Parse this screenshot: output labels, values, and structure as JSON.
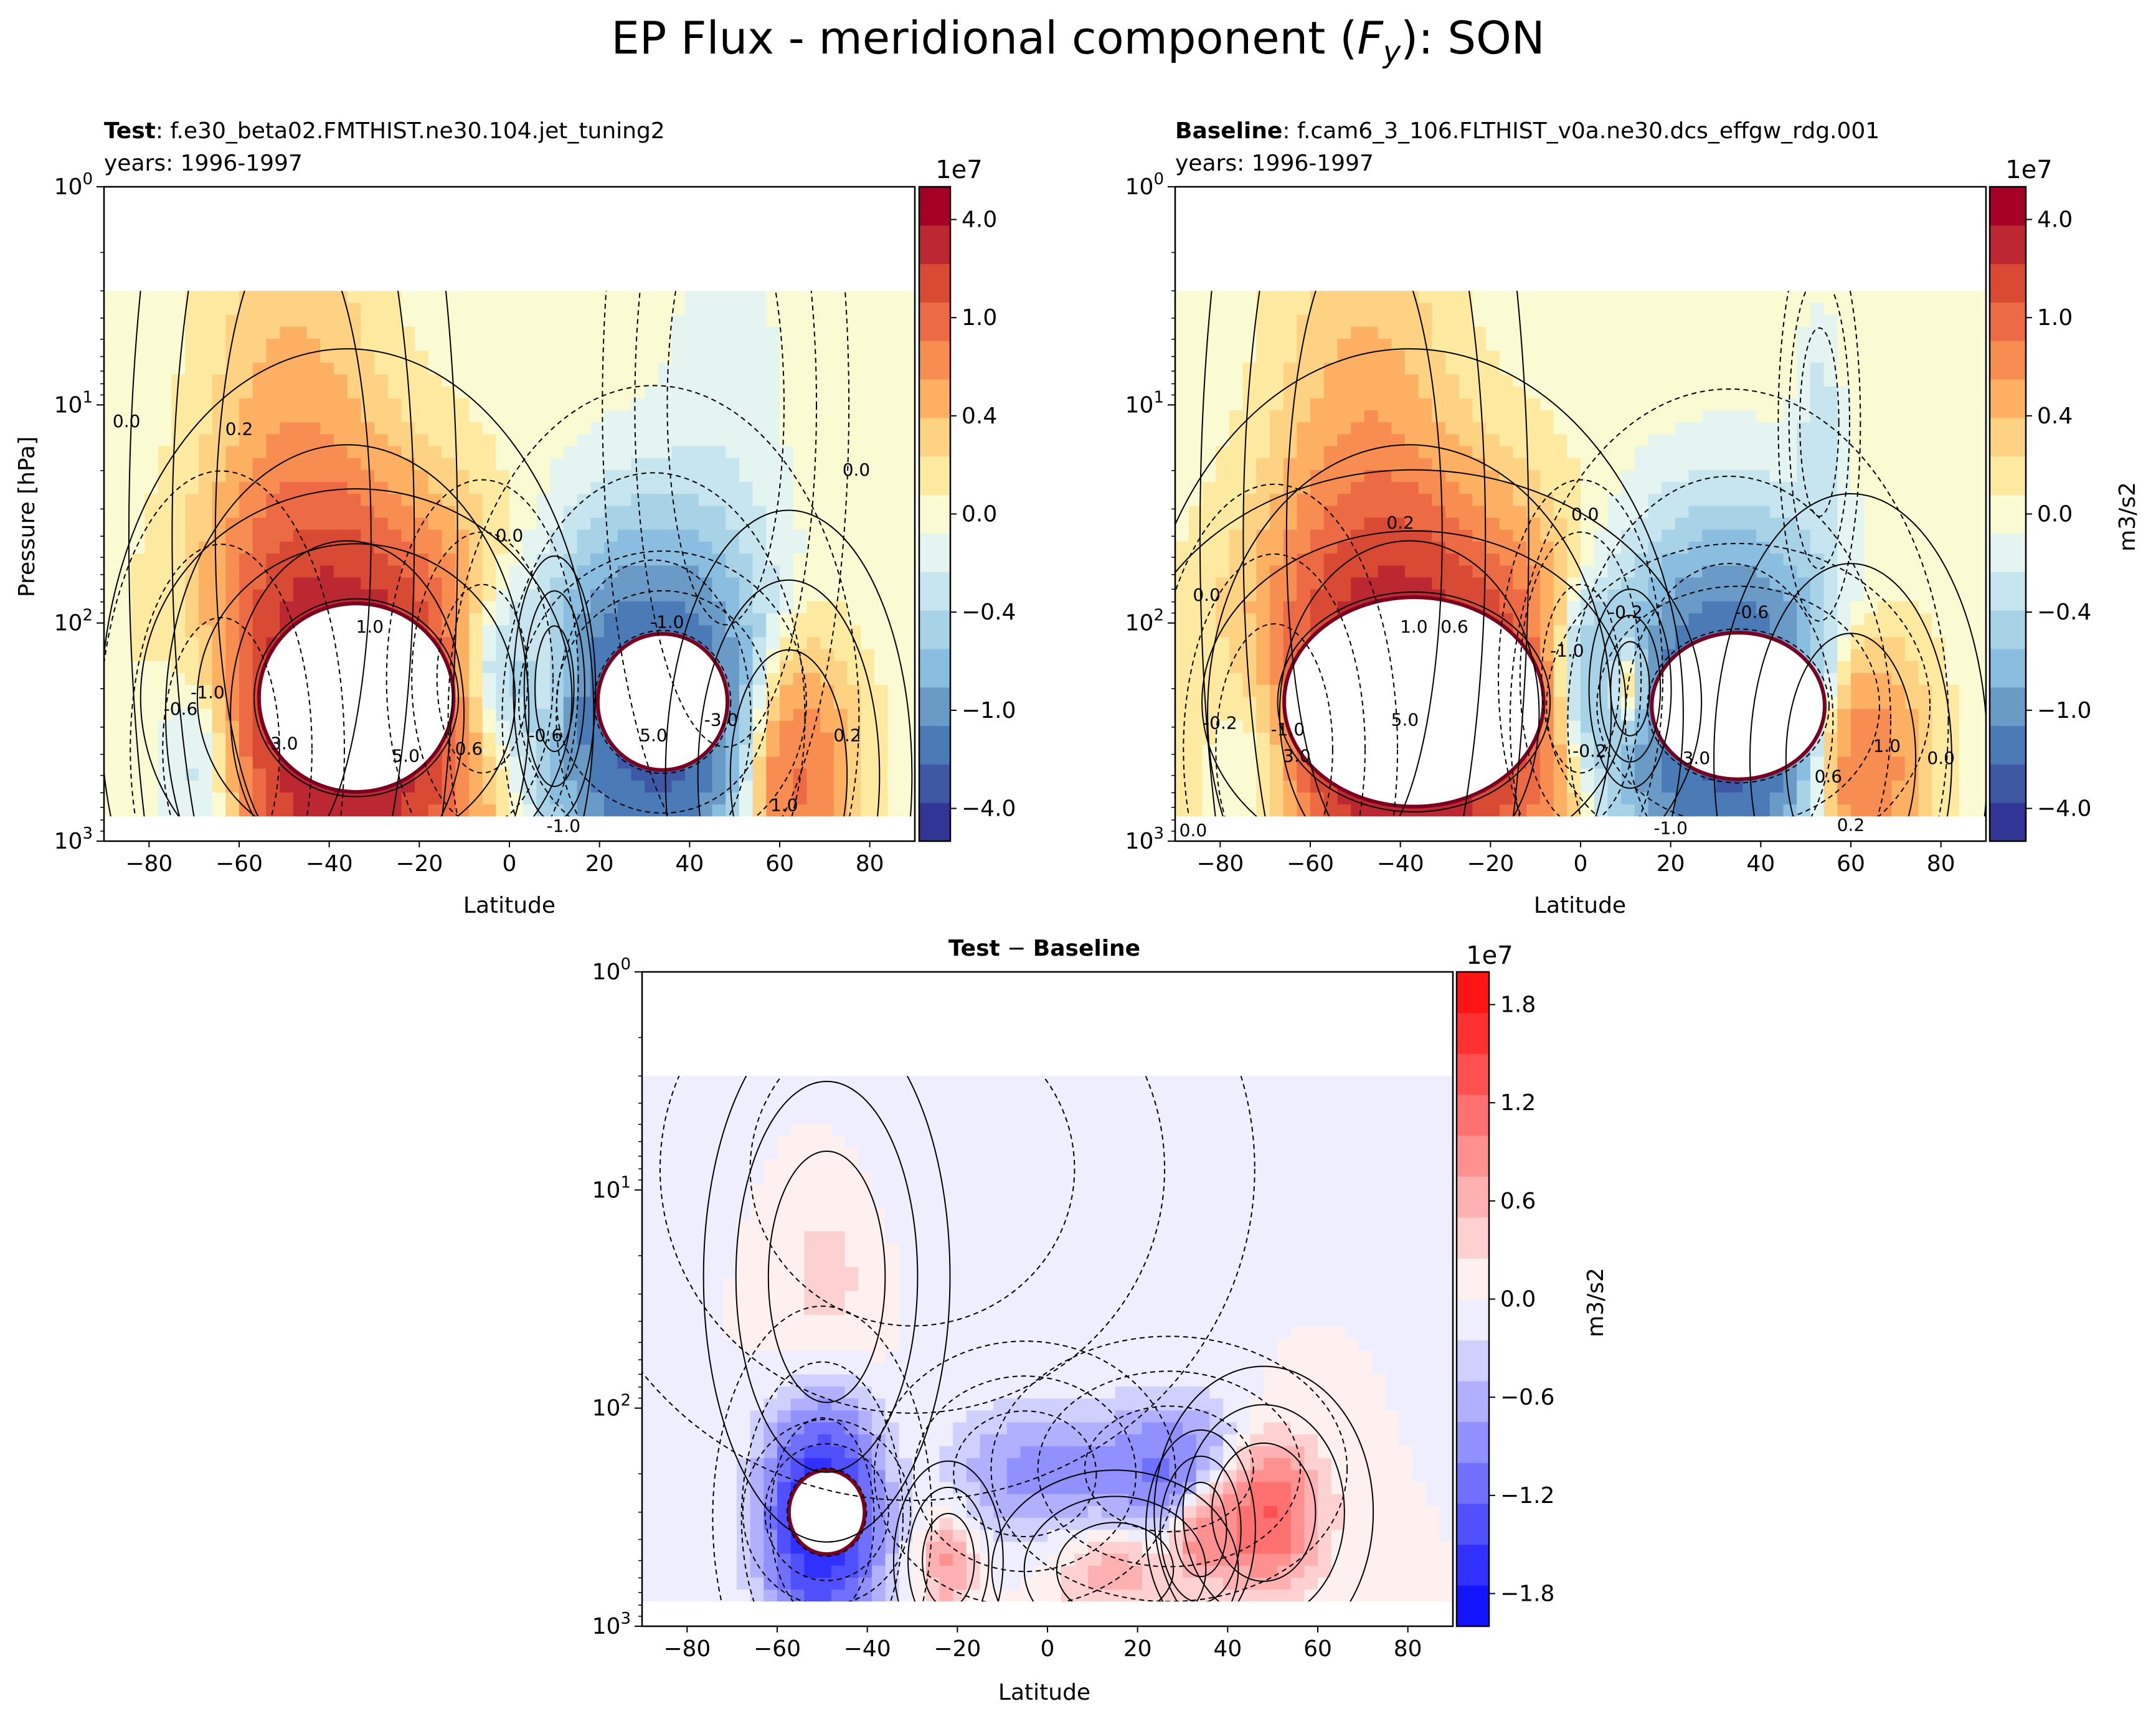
{
  "figure": {
    "title_prefix": "EP Flux - meridional component (",
    "title_symbol": "F",
    "title_subscript": "y",
    "title_suffix": "): SON"
  },
  "colors": {
    "rdylbu_r": [
      "#313695",
      "#3f58a6",
      "#4a7bb7",
      "#6a9bc7",
      "#8abee0",
      "#a8d3e6",
      "#c6e5ef",
      "#e4f4f1",
      "#fafbd3",
      "#fee9a0",
      "#fed283",
      "#fdb062",
      "#f88d52",
      "#ec6a44",
      "#d84a34",
      "#bc2831",
      "#a50026"
    ],
    "bwr": [
      "#1414ff",
      "#3030ff",
      "#5050ff",
      "#7070ff",
      "#9090ff",
      "#b0b0ff",
      "#d0d0ff",
      "#eeeeff",
      "#fff0f0",
      "#ffd0d0",
      "#ffb0b0",
      "#ff9090",
      "#ff7070",
      "#ff5050",
      "#ff3030",
      "#ff1414"
    ]
  },
  "chart_data": [
    {
      "id": "test",
      "type": "contourf",
      "title_bold": "Test",
      "title_rest": ": f.e30_beta02.FMTHIST.ne30.104.jet_tuning2",
      "subtitle": "years: 1996-1997",
      "xlabel": "Latitude",
      "ylabel": "Pressure [hPa]",
      "xlim": [
        -90,
        90
      ],
      "ylim_hPa": [
        1000,
        1
      ],
      "yscale": "log",
      "xticks": [
        -80,
        -60,
        -40,
        -20,
        0,
        20,
        40,
        60,
        80
      ],
      "yticks": [
        {
          "value": 1,
          "base": "10",
          "exp": "0"
        },
        {
          "value": 10,
          "base": "10",
          "exp": "1"
        },
        {
          "value": 100,
          "base": "10",
          "exp": "2"
        },
        {
          "value": 1000,
          "base": "10",
          "exp": "3"
        }
      ],
      "colorbar": {
        "offset": "1e7",
        "ticks": [
          "4.0",
          "1.0",
          "0.4",
          "0.0",
          "−0.4",
          "−1.0",
          "−4.0"
        ],
        "label": "",
        "cmap": "rdylbu_r"
      },
      "features": [
        {
          "kind": "hole",
          "lat": -34,
          "lev": 220,
          "dlat": 9,
          "dlog": 0.18,
          "value": 6.0
        },
        {
          "kind": "hole",
          "lat": 34,
          "lev": 230,
          "dlat": 6,
          "dlog": 0.13,
          "value": -6.0
        },
        {
          "kind": "lobe",
          "lat": -36,
          "lev": 260,
          "dlat": 18,
          "dlog": 0.55,
          "value": 4.0
        },
        {
          "kind": "lobe",
          "lat": -48,
          "lev": 40,
          "dlat": 12,
          "dlog": 1.0,
          "value": 0.6
        },
        {
          "kind": "lobe",
          "lat": -64,
          "lev": 380,
          "dlat": 9,
          "dlog": 0.42,
          "value": -1.1
        },
        {
          "kind": "lobe",
          "lat": 32,
          "lev": 270,
          "dlat": 15,
          "dlog": 0.5,
          "value": -3.0
        },
        {
          "kind": "lobe",
          "lat": -6,
          "lev": 180,
          "dlat": 7,
          "dlog": 0.3,
          "value": -0.9
        },
        {
          "kind": "lobe",
          "lat": 10,
          "lev": 200,
          "dlat": 3,
          "dlog": 0.2,
          "value": 0.5
        },
        {
          "kind": "lobe",
          "lat": 62,
          "lev": 500,
          "dlat": 9,
          "dlog": 0.4,
          "value": 1.4
        },
        {
          "kind": "lobe",
          "lat": 48,
          "lev": 10,
          "dlat": 9,
          "dlog": 0.7,
          "value": -0.12
        }
      ],
      "contour_labels": [
        {
          "text": "0.2",
          "lat": -60,
          "lev": 13
        },
        {
          "text": "0.0",
          "lat": -85,
          "lev": 12
        },
        {
          "text": "0.0",
          "lat": 0,
          "lev": 40
        },
        {
          "text": "0.0",
          "lat": 77,
          "lev": 20
        },
        {
          "text": "1.0",
          "lat": -31,
          "lev": 105
        },
        {
          "text": "-1.0",
          "lat": 35,
          "lev": 100
        },
        {
          "text": "-1.0",
          "lat": -67,
          "lev": 210
        },
        {
          "text": "-0.6",
          "lat": -73,
          "lev": 250
        },
        {
          "text": "5.0",
          "lat": 32,
          "lev": 330
        },
        {
          "text": "3.0",
          "lat": -50,
          "lev": 360
        },
        {
          "text": "5.0",
          "lat": -23,
          "lev": 410
        },
        {
          "text": "-3.0",
          "lat": 47,
          "lev": 280
        },
        {
          "text": "-0.6",
          "lat": 8,
          "lev": 330
        },
        {
          "text": "-1.0",
          "lat": 12,
          "lev": 860
        },
        {
          "text": "0.2",
          "lat": 75,
          "lev": 330
        },
        {
          "text": "1.0",
          "lat": 61,
          "lev": 690
        },
        {
          "text": "0.6",
          "lat": -9,
          "lev": 380
        }
      ]
    },
    {
      "id": "baseline",
      "type": "contourf",
      "title_bold": "Baseline",
      "title_rest": ": f.cam6_3_106.FLTHIST_v0a.ne30.dcs_effgw_rdg.001",
      "subtitle": "years: 1996-1997",
      "xlabel": "Latitude",
      "ylabel": "",
      "xlim": [
        -90,
        90
      ],
      "ylim_hPa": [
        1000,
        1
      ],
      "yscale": "log",
      "xticks": [
        -80,
        -60,
        -40,
        -20,
        0,
        20,
        40,
        60,
        80
      ],
      "yticks": [
        {
          "value": 1,
          "base": "10",
          "exp": "0"
        },
        {
          "value": 10,
          "base": "10",
          "exp": "1"
        },
        {
          "value": 100,
          "base": "10",
          "exp": "2"
        },
        {
          "value": 1000,
          "base": "10",
          "exp": "3"
        }
      ],
      "colorbar": {
        "offset": "1e7",
        "ticks": [
          "4.0",
          "1.0",
          "0.4",
          "0.0",
          "−0.4",
          "−1.0",
          "−4.0"
        ],
        "label": "m3/s2",
        "cmap": "rdylbu_r"
      },
      "features": [
        {
          "kind": "hole",
          "lat": -37,
          "lev": 230,
          "dlat": 12,
          "dlog": 0.2,
          "value": 6.0
        },
        {
          "kind": "hole",
          "lat": 35,
          "lev": 240,
          "dlat": 8,
          "dlog": 0.14,
          "value": -6.0
        },
        {
          "kind": "lobe",
          "lat": -38,
          "lev": 260,
          "dlat": 20,
          "dlog": 0.55,
          "value": 4.0
        },
        {
          "kind": "lobe",
          "lat": -48,
          "lev": 40,
          "dlat": 12,
          "dlog": 1.0,
          "value": 0.6
        },
        {
          "kind": "lobe",
          "lat": -68,
          "lev": 380,
          "dlat": 9,
          "dlog": 0.4,
          "value": -1.0
        },
        {
          "kind": "lobe",
          "lat": 33,
          "lev": 280,
          "dlat": 16,
          "dlog": 0.5,
          "value": -3.0
        },
        {
          "kind": "lobe",
          "lat": 0,
          "lev": 180,
          "dlat": 6,
          "dlog": 0.3,
          "value": -0.8
        },
        {
          "kind": "lobe",
          "lat": 11,
          "lev": 200,
          "dlat": 3,
          "dlog": 0.15,
          "value": 1.2
        },
        {
          "kind": "lobe",
          "lat": 60,
          "lev": 420,
          "dlat": 10,
          "dlog": 0.4,
          "value": 1.5
        },
        {
          "kind": "lobe",
          "lat": 53,
          "lev": 12,
          "dlat": 3,
          "dlog": 0.3,
          "value": -0.3
        }
      ],
      "contour_labels": [
        {
          "text": "0.2",
          "lat": -40,
          "lev": 35
        },
        {
          "text": "0.0",
          "lat": 1,
          "lev": 32
        },
        {
          "text": "0.0",
          "lat": -83,
          "lev": 75
        },
        {
          "text": "0.0",
          "lat": -86,
          "lev": 900
        },
        {
          "text": "1.0",
          "lat": -37,
          "lev": 105
        },
        {
          "text": "0.6",
          "lat": -28,
          "lev": 105
        },
        {
          "text": "-0.2",
          "lat": 10,
          "lev": 90
        },
        {
          "text": "-0.6",
          "lat": 38,
          "lev": 90
        },
        {
          "text": "-1.0",
          "lat": -3,
          "lev": 135
        },
        {
          "text": "5.0",
          "lat": -39,
          "lev": 280
        },
        {
          "text": "3.0",
          "lat": -63,
          "lev": 410
        },
        {
          "text": "-1.0",
          "lat": -65,
          "lev": 310
        },
        {
          "text": "-0.2",
          "lat": -80,
          "lev": 290
        },
        {
          "text": "-0.2",
          "lat": 2,
          "lev": 390
        },
        {
          "text": "-3.0",
          "lat": 25,
          "lev": 420
        },
        {
          "text": "-1.0",
          "lat": 20,
          "lev": 880
        },
        {
          "text": "1.0",
          "lat": 68,
          "lev": 370
        },
        {
          "text": "0.0",
          "lat": 80,
          "lev": 420
        },
        {
          "text": "0.6",
          "lat": 55,
          "lev": 510
        },
        {
          "text": "0.2",
          "lat": 60,
          "lev": 850
        }
      ]
    },
    {
      "id": "diff",
      "type": "contourf",
      "title_bold_a": "Test",
      "title_op": " − ",
      "title_bold_b": "Baseline",
      "xlabel": "Latitude",
      "ylabel": "",
      "xlim": [
        -90,
        90
      ],
      "ylim_hPa": [
        1000,
        1
      ],
      "yscale": "log",
      "xticks": [
        -80,
        -60,
        -40,
        -20,
        0,
        20,
        40,
        60,
        80
      ],
      "yticks": [
        {
          "value": 1,
          "base": "10",
          "exp": "0"
        },
        {
          "value": 10,
          "base": "10",
          "exp": "1"
        },
        {
          "value": 100,
          "base": "10",
          "exp": "2"
        },
        {
          "value": 1000,
          "base": "10",
          "exp": "3"
        }
      ],
      "colorbar": {
        "offset": "1e7",
        "ticks": [
          "1.8",
          "1.2",
          "0.6",
          "0.0",
          "−0.6",
          "−1.2",
          "−1.8"
        ],
        "label": "m3/s2",
        "cmap": "bwr"
      },
      "features": [
        {
          "kind": "hole",
          "lat": -49,
          "lev": 300,
          "dlat": 3.5,
          "dlog": 0.08,
          "value": -2.2
        },
        {
          "kind": "lobe",
          "lat": -50,
          "lev": 320,
          "dlat": 8,
          "dlog": 0.32,
          "value": -1.6
        },
        {
          "kind": "lobe",
          "lat": -5,
          "lev": 200,
          "dlat": 11,
          "dlog": 0.2,
          "value": -0.4
        },
        {
          "kind": "lobe",
          "lat": 27,
          "lev": 190,
          "dlat": 13,
          "dlog": 0.2,
          "value": -0.6
        },
        {
          "kind": "lobe",
          "lat": 48,
          "lev": 300,
          "dlat": 8,
          "dlog": 0.22,
          "value": 0.9
        },
        {
          "kind": "lobe",
          "lat": 34,
          "lev": 360,
          "dlat": 4,
          "dlog": 0.15,
          "value": 0.5
        },
        {
          "kind": "lobe",
          "lat": -22,
          "lev": 500,
          "dlat": 4,
          "dlog": 0.15,
          "value": 0.4
        },
        {
          "kind": "lobe",
          "lat": -49,
          "lev": 25,
          "dlat": 9,
          "dlog": 0.4,
          "value": 0.15
        },
        {
          "kind": "lobe",
          "lat": 15,
          "lev": 550,
          "dlat": 9,
          "dlog": 0.15,
          "value": 0.3
        },
        {
          "kind": "lobe",
          "lat": -30,
          "lev": 8,
          "dlat": 25,
          "dlog": 0.5,
          "value": -0.05
        }
      ],
      "contour_labels": []
    }
  ]
}
